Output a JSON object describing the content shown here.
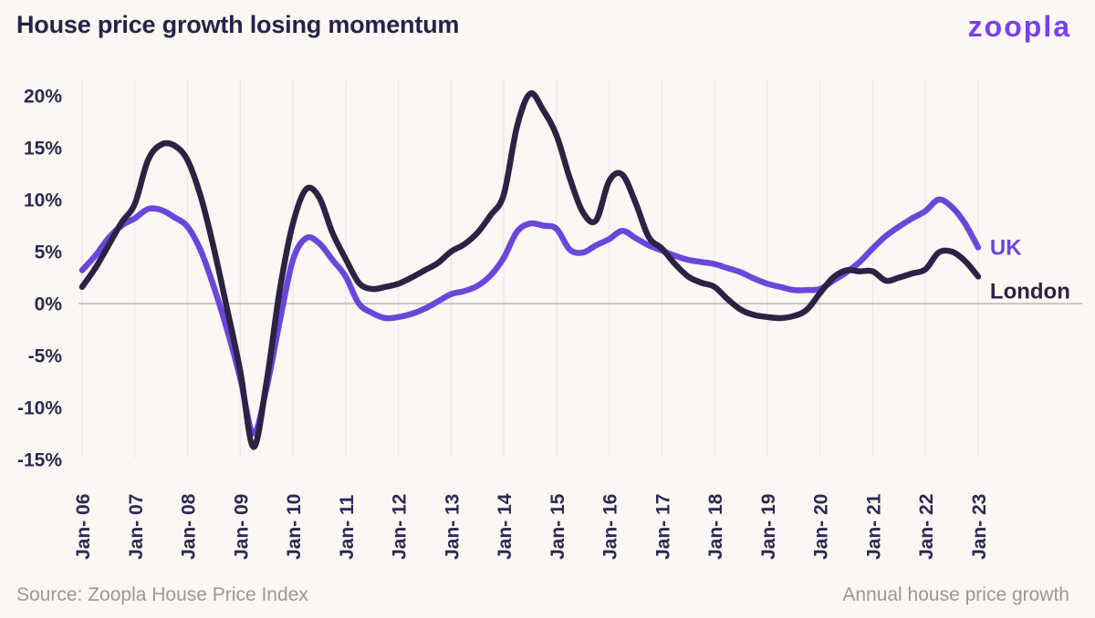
{
  "header": {
    "title": "House price growth losing momentum",
    "logo_text": "zoopla"
  },
  "footer": {
    "source": "Source: Zoopla House Price Index",
    "note": "Annual house price growth"
  },
  "colors": {
    "background": "#faf7f4",
    "title_text": "#272248",
    "axis_text": "#2d2951",
    "gridline": "#eceae6",
    "zero_line": "#bdbab7",
    "uk_line": "#6b46db",
    "london_line": "#2a2343",
    "logo_purple": "#7a3ff2",
    "footer_text": "#9b9894"
  },
  "chart_data": {
    "type": "line",
    "title": "House price growth losing momentum",
    "note": "Annual house price growth",
    "source": "Source: Zoopla House Price Index",
    "xlim": [
      2006,
      2023.1
    ],
    "ylim": [
      -15,
      20
    ],
    "grid": "vertical-faint",
    "legend_position": "right-of-line-ends",
    "y_ticks": [
      {
        "value": 20,
        "label": "20%"
      },
      {
        "value": 15,
        "label": "15%"
      },
      {
        "value": 10,
        "label": "10%"
      },
      {
        "value": 5,
        "label": "5%"
      },
      {
        "value": 0,
        "label": "0%"
      },
      {
        "value": -5,
        "label": "-5%"
      },
      {
        "value": -10,
        "label": "-10%"
      },
      {
        "value": -15,
        "label": "-15%"
      }
    ],
    "x_ticks": [
      {
        "year": 2006,
        "label": "Jan- 06"
      },
      {
        "year": 2007,
        "label": "Jan- 07"
      },
      {
        "year": 2008,
        "label": "Jan- 08"
      },
      {
        "year": 2009,
        "label": "Jan- 09"
      },
      {
        "year": 2010,
        "label": "Jan- 10"
      },
      {
        "year": 2011,
        "label": "Jan- 11"
      },
      {
        "year": 2012,
        "label": "Jan- 12"
      },
      {
        "year": 2013,
        "label": "Jan- 13"
      },
      {
        "year": 2014,
        "label": "Jan- 14"
      },
      {
        "year": 2015,
        "label": "Jan- 15"
      },
      {
        "year": 2016,
        "label": "Jan- 16"
      },
      {
        "year": 2017,
        "label": "Jan- 17"
      },
      {
        "year": 2018,
        "label": "Jan- 18"
      },
      {
        "year": 2019,
        "label": "Jan- 19"
      },
      {
        "year": 2020,
        "label": "Jan- 20"
      },
      {
        "year": 2021,
        "label": "Jan- 21"
      },
      {
        "year": 2022,
        "label": "Jan- 22"
      },
      {
        "year": 2023,
        "label": "Jan- 23"
      }
    ],
    "x": [
      2006,
      2006.25,
      2006.5,
      2006.75,
      2007,
      2007.25,
      2007.5,
      2007.75,
      2008,
      2008.25,
      2008.5,
      2008.75,
      2009,
      2009.25,
      2009.5,
      2009.75,
      2010,
      2010.25,
      2010.5,
      2010.75,
      2011,
      2011.25,
      2011.5,
      2011.75,
      2012,
      2012.25,
      2012.5,
      2012.75,
      2013,
      2013.25,
      2013.5,
      2013.75,
      2014,
      2014.25,
      2014.5,
      2014.75,
      2015,
      2015.25,
      2015.5,
      2015.75,
      2016,
      2016.25,
      2016.5,
      2016.75,
      2017,
      2017.25,
      2017.5,
      2017.75,
      2018,
      2018.25,
      2018.5,
      2018.75,
      2019,
      2019.25,
      2019.5,
      2019.75,
      2020,
      2020.25,
      2020.5,
      2020.75,
      2021,
      2021.25,
      2021.5,
      2021.75,
      2022,
      2022.25,
      2022.5,
      2022.75,
      2023
    ],
    "series": [
      {
        "name": "UK",
        "color_key": "uk_line",
        "values": [
          3.2,
          4.6,
          6.3,
          7.5,
          8.2,
          9.1,
          9.0,
          8.3,
          7.4,
          5.1,
          1.6,
          -2.5,
          -7.2,
          -12.5,
          -8.1,
          -1.7,
          4.2,
          6.3,
          5.8,
          4.2,
          2.6,
          0.0,
          -0.9,
          -1.4,
          -1.3,
          -1.0,
          -0.5,
          0.2,
          0.9,
          1.2,
          1.7,
          2.7,
          4.4,
          6.9,
          7.7,
          7.5,
          7.2,
          5.2,
          4.9,
          5.6,
          6.2,
          7.0,
          6.3,
          5.6,
          5.1,
          4.6,
          4.2,
          4.0,
          3.8,
          3.4,
          3.0,
          2.4,
          1.9,
          1.6,
          1.3,
          1.3,
          1.4,
          2.2,
          3.0,
          4.0,
          5.3,
          6.5,
          7.4,
          8.2,
          8.9,
          10.0,
          9.3,
          7.7,
          5.4
        ]
      },
      {
        "name": "London",
        "color_key": "london_line",
        "values": [
          1.6,
          3.4,
          5.6,
          7.8,
          9.6,
          13.8,
          15.3,
          15.2,
          13.8,
          10.3,
          5.3,
          -0.5,
          -6.5,
          -13.8,
          -7.5,
          1.3,
          7.7,
          11.0,
          10.2,
          6.8,
          4.3,
          2.0,
          1.4,
          1.6,
          1.9,
          2.5,
          3.2,
          3.9,
          5.0,
          5.7,
          6.8,
          8.5,
          10.5,
          17.0,
          20.2,
          18.6,
          16.2,
          12.1,
          8.8,
          8.0,
          11.8,
          12.4,
          9.7,
          6.4,
          5.3,
          3.8,
          2.6,
          2.0,
          1.6,
          0.4,
          -0.6,
          -1.1,
          -1.3,
          -1.4,
          -1.2,
          -0.6,
          1.0,
          2.5,
          3.2,
          3.1,
          3.1,
          2.2,
          2.5,
          2.9,
          3.3,
          4.9,
          5.0,
          4.1,
          2.6
        ]
      }
    ]
  }
}
